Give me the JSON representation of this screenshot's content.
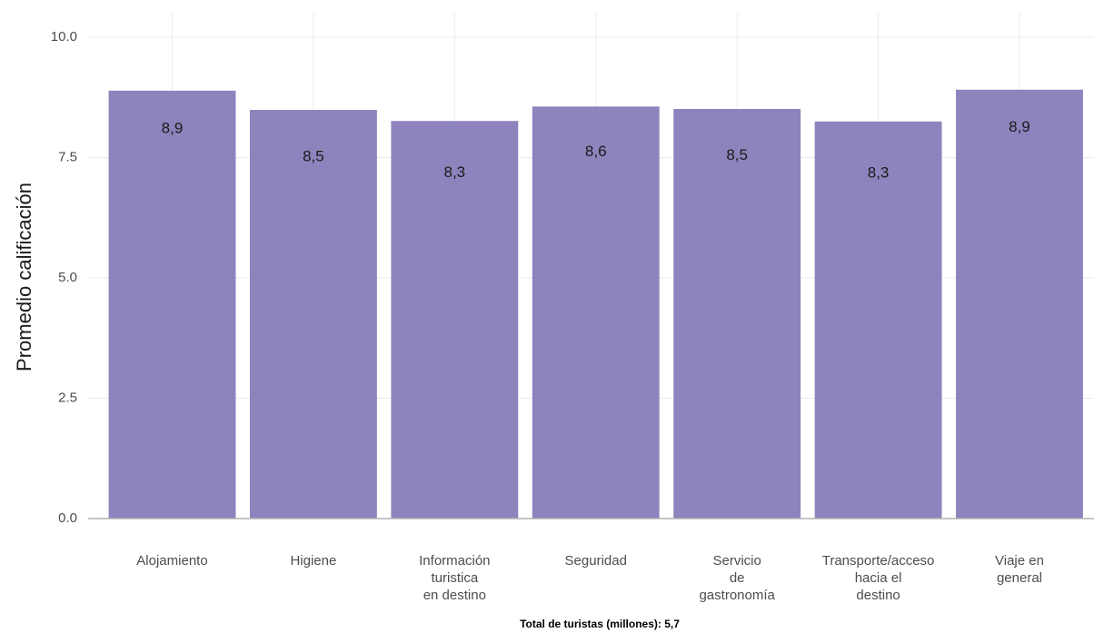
{
  "chart_data": {
    "type": "bar",
    "y_label": "Promedio calificación",
    "caption": "Total de turistas (millones): 5,7",
    "categories": [
      "Alojamiento",
      "Higiene",
      "Información\nturistica\nen destino",
      "Seguridad",
      "Servicio\nde\ngastronomía",
      "Transporte/acceso\nhacia el\ndestino",
      "Viaje en\ngeneral"
    ],
    "values": [
      8.89,
      8.49,
      8.26,
      8.56,
      8.51,
      8.25,
      8.91
    ],
    "value_labels": [
      "8,9",
      "8,5",
      "8,3",
      "8,6",
      "8,5",
      "8,3",
      "8,9"
    ],
    "color": "#8f83bd",
    "ylim": [
      0,
      10
    ],
    "yticks": [
      {
        "value": 0,
        "label": "0.0"
      },
      2.5,
      {
        "value": 5,
        "label": "5.0"
      },
      7.5,
      {
        "value": 10,
        "label": "10.0"
      }
    ],
    "grid": true
  }
}
